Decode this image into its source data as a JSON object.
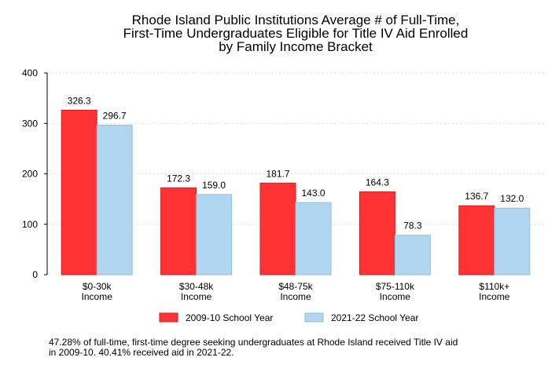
{
  "chart_data": {
    "type": "bar",
    "title_lines": [
      "Rhode Island Public Institutions Average # of Full-Time,",
      "First-Time Undergraduates Eligible for Title IV Aid Enrolled",
      "by Family Income Bracket"
    ],
    "categories": [
      [
        "$0-30k",
        "Income"
      ],
      [
        "$30-48k",
        "Income"
      ],
      [
        "$48-75k",
        "Income"
      ],
      [
        "$75-110k",
        "Income"
      ],
      [
        "$110k+",
        "Income"
      ]
    ],
    "series": [
      {
        "name": "2009-10 School Year",
        "color": "#ff3333",
        "stroke": "#cc1f1f",
        "values": [
          326.3,
          172.3,
          181.7,
          164.3,
          136.7
        ],
        "labels": [
          "326.3",
          "172.3",
          "181.7",
          "164.3",
          "136.7"
        ]
      },
      {
        "name": "2021-22 School Year",
        "color": "#b0d6f0",
        "stroke": "#8fbfe0",
        "values": [
          296.7,
          159.0,
          143.0,
          78.3,
          132.0
        ],
        "labels": [
          "296.7",
          "159.0",
          "143.0",
          "78.3",
          "132.0"
        ]
      }
    ],
    "ylim": [
      0,
      400
    ],
    "yticks": [
      0,
      100,
      200,
      300,
      400
    ],
    "grid": true,
    "legend_position": "bottom",
    "xlabel": "",
    "ylabel": ""
  },
  "footnote": {
    "line1": "47.28% of full-time, first-time degree seeking undergraduates at Rhode Island received Title IV aid",
    "line2": "in 2009-10. 40.41% received aid in 2021-22."
  }
}
